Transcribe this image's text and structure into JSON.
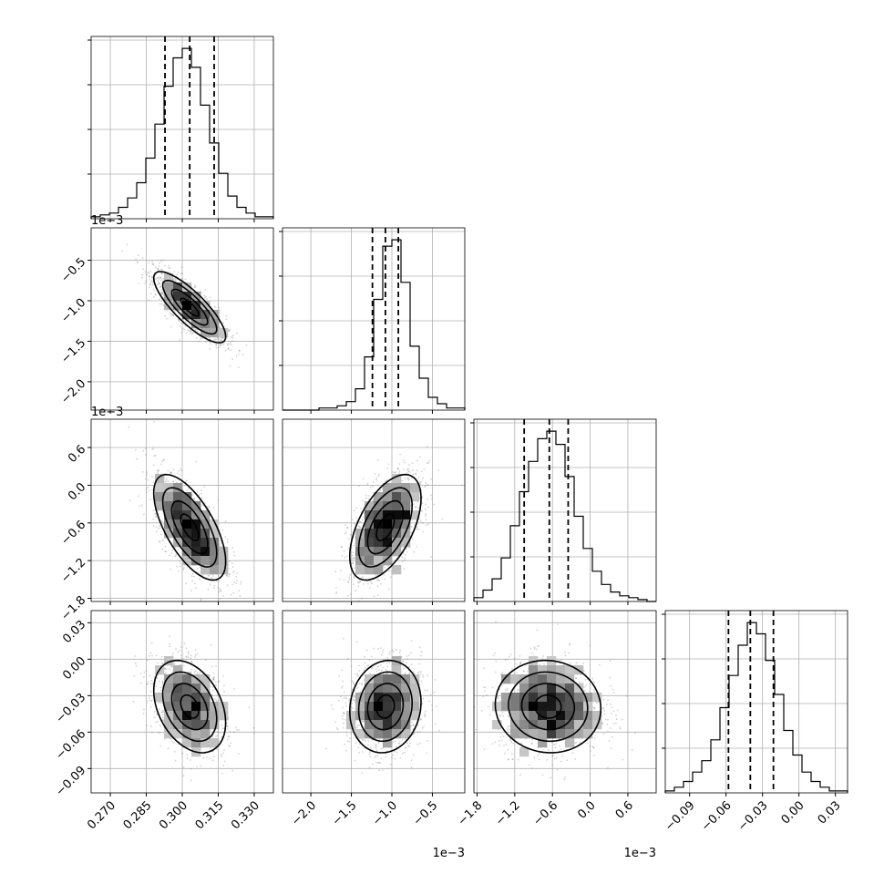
{
  "chart_data": {
    "type": "corner",
    "title": "",
    "parameters": [
      {
        "range": [
          0.262,
          0.338
        ],
        "ticks": [
          0.27,
          0.285,
          0.3,
          0.315,
          0.33
        ],
        "tick_labels": [
          "0.270",
          "0.285",
          "0.300",
          "0.315",
          "0.330"
        ],
        "offset_label": ""
      },
      {
        "range": [
          -2.35,
          -0.1
        ],
        "ticks": [
          -2.0,
          -1.5,
          -1.0,
          -0.5
        ],
        "tick_labels": [
          "−2.0",
          "−1.5",
          "−1.0",
          "−0.5"
        ],
        "offset_label": "1e−3"
      },
      {
        "range": [
          -1.85,
          1.05
        ],
        "ticks": [
          -1.8,
          -1.2,
          -0.6,
          0.0,
          0.6
        ],
        "tick_labels": [
          "−1.8",
          "−1.2",
          "−0.6",
          "0.0",
          "0.6"
        ],
        "offset_label": "1e−3"
      },
      {
        "range": [
          -0.11,
          0.04
        ],
        "ticks": [
          -0.09,
          -0.06,
          -0.03,
          0.0,
          0.03
        ],
        "tick_labels": [
          "−0.09",
          "−0.06",
          "−0.03",
          "0.00",
          "0.03"
        ],
        "offset_label": ""
      }
    ],
    "marginals": [
      {
        "param": 0,
        "quantiles": [
          0.2928,
          0.3031,
          0.3133
        ],
        "counts": [
          1,
          2,
          3,
          6,
          11,
          19,
          32,
          50,
          70,
          85,
          90,
          80,
          60,
          40,
          24,
          12,
          6,
          3,
          1,
          1
        ]
      },
      {
        "param": 1,
        "quantiles": [
          -1.24,
          -1.08,
          -0.92
        ],
        "counts": [
          0,
          0,
          0,
          0,
          1,
          1,
          2,
          4,
          10,
          25,
          52,
          77,
          80,
          60,
          30,
          15,
          6,
          3,
          1,
          1
        ]
      },
      {
        "param": 2,
        "quantiles": [
          -1.05,
          -0.65,
          -0.35
        ],
        "counts": [
          2,
          6,
          12,
          23,
          40,
          58,
          74,
          86,
          90,
          83,
          66,
          45,
          28,
          16,
          9,
          5,
          3,
          2,
          1,
          0
        ]
      },
      {
        "param": 3,
        "quantiles": [
          -0.058,
          -0.04,
          -0.021
        ],
        "counts": [
          1,
          3,
          6,
          11,
          17,
          28,
          45,
          62,
          78,
          90,
          84,
          70,
          52,
          33,
          20,
          11,
          6,
          3,
          1,
          1
        ]
      }
    ],
    "joint": [
      {
        "x": 0,
        "y": 1,
        "mean": [
          0.3031,
          -1.08
        ],
        "std": [
          0.0075,
          0.22
        ],
        "corr": -0.82
      },
      {
        "x": 0,
        "y": 2,
        "mean": [
          0.3031,
          -0.67
        ],
        "std": [
          0.0075,
          0.42
        ],
        "corr": -0.65
      },
      {
        "x": 1,
        "y": 2,
        "mean": [
          -1.08,
          -0.67
        ],
        "std": [
          0.22,
          0.42
        ],
        "corr": 0.55
      },
      {
        "x": 0,
        "y": 3,
        "mean": [
          0.3031,
          -0.039
        ],
        "std": [
          0.0075,
          0.019
        ],
        "corr": -0.35
      },
      {
        "x": 1,
        "y": 3,
        "mean": [
          -1.08,
          -0.039
        ],
        "std": [
          0.22,
          0.019
        ],
        "corr": 0.1
      },
      {
        "x": 2,
        "y": 3,
        "mean": [
          -0.67,
          -0.039
        ],
        "std": [
          0.42,
          0.019
        ],
        "corr": -0.05
      }
    ],
    "grid": true
  }
}
